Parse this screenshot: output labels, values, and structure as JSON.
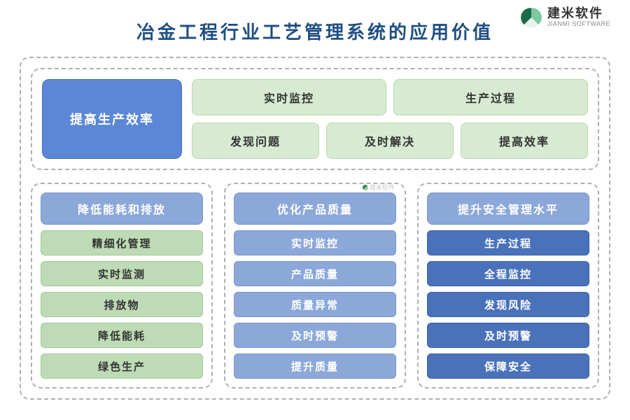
{
  "logo": {
    "cn": "建米软件",
    "en": "JIANMI SOFTWARE",
    "mark_color_dark": "#1a6b4a",
    "mark_color_light": "#7fc9a0"
  },
  "title": {
    "text": "冶金工程行业工艺管理系统的应用价值",
    "color": "#1f4f82",
    "fontsize": 26
  },
  "colors": {
    "bg": "#ffffff",
    "dash_border": "#b0b0b0",
    "blue_fill": "#5b87d6",
    "blue_border": "#4a72bb",
    "blue_text": "#ffffff",
    "lightblue_fill": "#8ba8d9",
    "lightblue_border": "#7a96c6",
    "darkblue_fill": "#4a72bb",
    "darkblue_border": "#3a5fa1",
    "green_light_fill": "#d6ebd1",
    "green_light_border": "#b9d9b0",
    "green_mid_fill": "#bddbb5",
    "green_mid_border": "#a2c99a",
    "green_text": "#333333"
  },
  "top": {
    "left": {
      "label": "提高生产效率",
      "bg": "#5b87d6",
      "border": "#4a72bb",
      "text_color": "#ffffff"
    },
    "row1": [
      {
        "label": "实时监控",
        "bg": "#d6ebd1",
        "border": "#b9d9b0",
        "text_color": "#333333"
      },
      {
        "label": "生产过程",
        "bg": "#d6ebd1",
        "border": "#b9d9b0",
        "text_color": "#333333"
      }
    ],
    "row2": [
      {
        "label": "发现问题",
        "bg": "#d6ebd1",
        "border": "#b9d9b0",
        "text_color": "#333333"
      },
      {
        "label": "及时解决",
        "bg": "#d6ebd1",
        "border": "#b9d9b0",
        "text_color": "#333333"
      },
      {
        "label": "提高效率",
        "bg": "#d6ebd1",
        "border": "#b9d9b0",
        "text_color": "#333333"
      }
    ]
  },
  "columns": [
    {
      "header": {
        "label": "降低能耗和排放",
        "bg": "#8ba8d9",
        "border": "#7a96c6",
        "text_color": "#ffffff"
      },
      "items": [
        {
          "label": "精细化管理",
          "bg": "#bddbb5",
          "border": "#a2c99a",
          "text_color": "#333333"
        },
        {
          "label": "实时监测",
          "bg": "#bddbb5",
          "border": "#a2c99a",
          "text_color": "#333333"
        },
        {
          "label": "排放物",
          "bg": "#bddbb5",
          "border": "#a2c99a",
          "text_color": "#333333"
        },
        {
          "label": "降低能耗",
          "bg": "#bddbb5",
          "border": "#a2c99a",
          "text_color": "#333333"
        },
        {
          "label": "绿色生产",
          "bg": "#bddbb5",
          "border": "#a2c99a",
          "text_color": "#333333"
        }
      ]
    },
    {
      "header": {
        "label": "优化产品质量",
        "bg": "#8ba8d9",
        "border": "#7a96c6",
        "text_color": "#ffffff"
      },
      "items": [
        {
          "label": "实时监控",
          "bg": "#8ba8d9",
          "border": "#7a96c6",
          "text_color": "#ffffff"
        },
        {
          "label": "产品质量",
          "bg": "#8ba8d9",
          "border": "#7a96c6",
          "text_color": "#ffffff"
        },
        {
          "label": "质量异常",
          "bg": "#8ba8d9",
          "border": "#7a96c6",
          "text_color": "#ffffff"
        },
        {
          "label": "及时预警",
          "bg": "#8ba8d9",
          "border": "#7a96c6",
          "text_color": "#ffffff"
        },
        {
          "label": "提升质量",
          "bg": "#8ba8d9",
          "border": "#7a96c6",
          "text_color": "#ffffff"
        }
      ],
      "watermark": "建米软件"
    },
    {
      "header": {
        "label": "提升安全管理水平",
        "bg": "#8ba8d9",
        "border": "#7a96c6",
        "text_color": "#ffffff"
      },
      "items": [
        {
          "label": "生产过程",
          "bg": "#4a72bb",
          "border": "#3a5fa1",
          "text_color": "#ffffff"
        },
        {
          "label": "全程监控",
          "bg": "#4a72bb",
          "border": "#3a5fa1",
          "text_color": "#ffffff"
        },
        {
          "label": "发现风险",
          "bg": "#4a72bb",
          "border": "#3a5fa1",
          "text_color": "#ffffff"
        },
        {
          "label": "及时预警",
          "bg": "#4a72bb",
          "border": "#3a5fa1",
          "text_color": "#ffffff"
        },
        {
          "label": "保障安全",
          "bg": "#4a72bb",
          "border": "#3a5fa1",
          "text_color": "#ffffff"
        }
      ]
    }
  ]
}
